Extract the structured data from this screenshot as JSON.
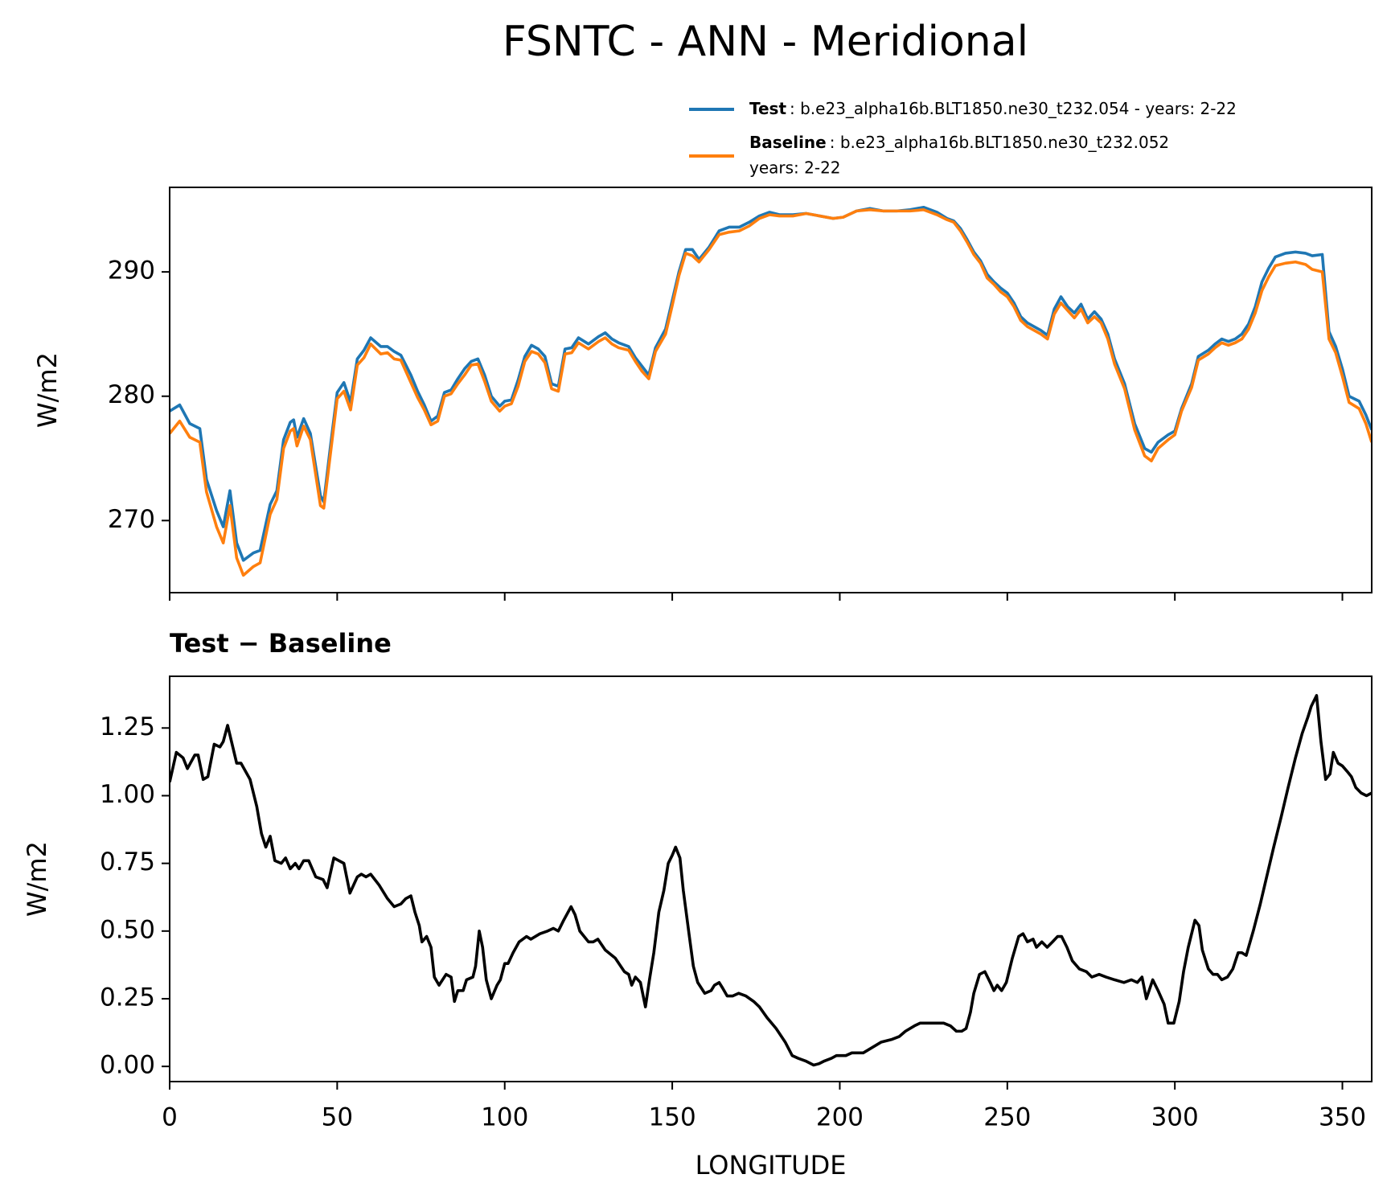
{
  "chart_data": [
    {
      "type": "line",
      "title": "FSNTC - ANN - Meridional",
      "ylabel": "W/m2",
      "x": [
        0,
        3,
        6,
        9,
        11,
        14,
        16,
        18,
        20,
        22,
        25,
        27,
        30,
        32,
        34,
        36,
        37,
        38,
        40,
        42,
        45,
        46,
        48,
        50,
        52,
        54,
        56,
        58,
        60,
        63,
        65,
        67,
        69,
        72,
        74,
        76,
        78,
        80,
        82,
        84,
        86,
        88,
        90,
        92,
        94,
        96,
        98.5,
        100,
        102,
        104,
        106,
        108,
        110,
        112,
        114,
        116,
        118,
        120,
        122,
        125,
        128,
        130,
        132,
        134,
        137,
        139,
        141,
        143,
        145,
        148,
        150,
        152,
        154,
        156,
        158,
        161,
        164,
        167,
        170,
        173,
        176,
        179,
        182,
        186,
        190,
        194,
        198,
        201,
        205,
        209,
        213,
        217,
        221,
        225,
        229,
        232,
        234,
        236,
        238,
        240,
        242,
        244,
        246,
        248,
        250,
        252,
        254,
        256,
        258,
        260,
        262,
        264,
        266,
        268,
        270,
        272,
        274,
        276,
        278,
        280,
        282,
        285,
        288,
        291,
        293,
        295,
        298,
        300,
        302,
        305,
        307,
        310,
        312,
        314,
        316,
        318,
        320,
        322,
        324,
        326,
        328,
        330,
        333,
        336,
        339,
        341,
        344,
        346,
        348,
        350,
        352,
        355,
        357,
        358.75
      ],
      "series": [
        {
          "name": "Test",
          "description": [
            ": b.e23_alpha16b.BLT1850.ne30_t232.054 - years: 2-22"
          ],
          "color": "#1f77b4",
          "values": [
            278.8,
            279.3,
            277.8,
            277.4,
            273.3,
            270.8,
            269.5,
            272.4,
            268.2,
            266.8,
            267.4,
            267.6,
            271.3,
            272.4,
            276.5,
            277.9,
            278.1,
            276.7,
            278.2,
            277.0,
            272.0,
            271.5,
            276.0,
            280.3,
            281.1,
            279.5,
            283.0,
            283.7,
            284.7,
            284.0,
            284.0,
            283.6,
            283.3,
            281.7,
            280.4,
            279.3,
            278.0,
            278.4,
            280.3,
            280.5,
            281.4,
            282.2,
            282.8,
            283.0,
            281.7,
            280.0,
            279.2,
            279.6,
            279.7,
            281.3,
            283.2,
            284.1,
            283.8,
            283.2,
            281.0,
            280.8,
            283.8,
            283.9,
            284.7,
            284.2,
            284.8,
            285.1,
            284.6,
            284.3,
            284.0,
            283.1,
            282.4,
            281.7,
            283.9,
            285.4,
            287.7,
            290.0,
            291.8,
            291.8,
            291.0,
            292.0,
            293.3,
            293.6,
            293.6,
            294.0,
            294.5,
            294.8,
            294.6,
            294.6,
            294.7,
            294.5,
            294.3,
            294.4,
            294.9,
            295.1,
            294.9,
            294.9,
            295.0,
            295.2,
            294.8,
            294.3,
            294.1,
            293.5,
            292.6,
            291.6,
            290.9,
            289.8,
            289.2,
            288.7,
            288.3,
            287.5,
            286.4,
            285.9,
            285.6,
            285.3,
            284.9,
            287.0,
            288.0,
            287.2,
            286.7,
            287.4,
            286.2,
            286.8,
            286.2,
            285.0,
            283.0,
            281.0,
            277.8,
            275.8,
            275.5,
            276.3,
            276.9,
            277.2,
            279.0,
            281.0,
            283.2,
            283.7,
            284.2,
            284.6,
            284.4,
            284.6,
            285.0,
            285.8,
            287.2,
            289.2,
            290.3,
            291.2,
            291.5,
            291.6,
            291.5,
            291.3,
            291.4,
            285.2,
            284.0,
            282.2,
            280.0,
            279.6,
            278.5,
            277.3
          ]
        },
        {
          "name": "Baseline",
          "description": [
            ": b.e23_alpha16b.BLT1850.ne30_t232.052",
            "years: 2-22"
          ],
          "color": "#ff7f0e",
          "values": [
            277.0,
            278.0,
            276.7,
            276.3,
            272.3,
            269.5,
            268.2,
            271.2,
            267.0,
            265.6,
            266.3,
            266.6,
            270.5,
            271.7,
            275.8,
            277.2,
            277.4,
            276.0,
            277.6,
            276.5,
            271.2,
            271.0,
            275.4,
            279.8,
            280.4,
            278.9,
            282.5,
            283.1,
            284.2,
            283.4,
            283.5,
            283.0,
            282.9,
            281.1,
            279.9,
            278.9,
            277.7,
            278.0,
            280.0,
            280.2,
            281.0,
            281.7,
            282.5,
            282.6,
            281.2,
            279.6,
            278.8,
            279.2,
            279.4,
            280.8,
            282.8,
            283.6,
            283.4,
            282.7,
            280.6,
            280.4,
            283.4,
            283.5,
            284.3,
            283.8,
            284.4,
            284.7,
            284.2,
            283.9,
            283.7,
            282.8,
            282.0,
            281.4,
            283.6,
            285.0,
            287.3,
            289.7,
            291.5,
            291.3,
            290.8,
            291.8,
            293.0,
            293.2,
            293.3,
            293.7,
            294.3,
            294.6,
            294.5,
            294.5,
            294.7,
            294.5,
            294.3,
            294.4,
            294.9,
            295.0,
            294.9,
            294.9,
            294.9,
            295.0,
            294.6,
            294.2,
            294.0,
            293.3,
            292.4,
            291.4,
            290.7,
            289.5,
            289.0,
            288.4,
            288.0,
            287.2,
            286.1,
            285.6,
            285.3,
            285.0,
            284.6,
            286.6,
            287.5,
            286.9,
            286.3,
            287.0,
            285.9,
            286.4,
            285.9,
            284.6,
            282.6,
            280.6,
            277.3,
            275.2,
            274.8,
            275.8,
            276.5,
            276.9,
            278.8,
            280.7,
            282.9,
            283.4,
            283.9,
            284.3,
            284.1,
            284.3,
            284.6,
            285.4,
            286.7,
            288.5,
            289.6,
            290.5,
            290.7,
            290.8,
            290.6,
            290.2,
            290.0,
            284.6,
            283.5,
            281.6,
            279.5,
            279.0,
            277.8,
            276.3
          ]
        }
      ],
      "xlim": [
        0,
        358.75
      ],
      "xticks": [
        0,
        50,
        100,
        150,
        200,
        250,
        300,
        350
      ],
      "xtick_labels": false,
      "ylim": [
        264.2,
        296.8
      ],
      "yticks": [
        270,
        280,
        290
      ],
      "legend": "upper right"
    },
    {
      "type": "line",
      "title": "Test − Baseline",
      "ylabel": "W/m2",
      "xlabel": "LONGITUDE",
      "x": [
        0,
        2,
        4,
        5.3,
        7.5,
        8.5,
        10,
        11.4,
        13.3,
        15,
        16,
        17.3,
        20,
        21.3,
        24,
        26,
        27.4,
        28.7,
        30,
        31.4,
        33.3,
        34.6,
        36,
        37.5,
        38.6,
        40,
        41.5,
        43.6,
        45.8,
        47,
        49,
        52,
        53.8,
        56,
        57.2,
        58.6,
        60,
        62.5,
        65,
        67,
        69,
        70.5,
        72,
        73.2,
        74.5,
        75.3,
        76.7,
        78,
        79,
        80.4,
        82.5,
        84,
        85,
        86,
        87.6,
        88.6,
        90.5,
        91.3,
        92.4,
        93.4,
        94.5,
        96,
        97.7,
        98.7,
        100,
        101,
        102.5,
        104.3,
        106.5,
        107.8,
        110.5,
        112.8,
        114.5,
        116,
        117.6,
        119.8,
        121,
        122.4,
        125,
        126.4,
        127.8,
        130,
        133,
        135.7,
        137,
        137.9,
        139,
        140.5,
        142,
        143.2,
        144.5,
        146,
        147.5,
        148.8,
        150,
        151,
        152.3,
        153.3,
        155,
        156.3,
        157.6,
        159.7,
        161.6,
        162.6,
        164,
        165,
        166.4,
        168,
        169.8,
        172,
        174.3,
        176,
        178.3,
        181,
        183.7,
        185.8,
        187.6,
        189.8,
        192.2,
        193.8,
        195.4,
        197.5,
        199,
        201.8,
        203.6,
        205,
        207,
        209.7,
        212.4,
        215.6,
        217.7,
        219.6,
        222.3,
        224,
        227.6,
        231,
        233,
        234.8,
        236.4,
        237.7,
        239,
        240,
        241.7,
        243.3,
        244.9,
        246,
        247,
        248.3,
        249.7,
        251.5,
        253.4,
        254.7,
        256,
        257.7,
        258.7,
        260.3,
        261.9,
        263.5,
        265,
        266.2,
        267.8,
        269.4,
        271.5,
        273.6,
        275.2,
        277.4,
        279.5,
        282,
        284.8,
        287,
        288.8,
        290.2,
        291.5,
        293.4,
        295,
        296.8,
        298,
        299.7,
        301.3,
        302.6,
        304,
        306,
        307.2,
        308.2,
        310,
        311.4,
        312.7,
        314,
        315.7,
        317.3,
        318.9,
        320,
        321.3,
        323.4,
        325.5,
        327.4,
        329.5,
        331.7,
        333.8,
        336,
        338,
        339.7,
        340.7,
        342.3,
        343.6,
        345,
        346.3,
        347.3,
        348.7,
        350,
        351.4,
        352.7,
        354,
        355.6,
        357.2,
        358.75
      ],
      "series": [
        {
          "color": "#000000",
          "values": [
            1.05,
            1.16,
            1.14,
            1.1,
            1.15,
            1.15,
            1.06,
            1.07,
            1.19,
            1.18,
            1.2,
            1.26,
            1.12,
            1.12,
            1.06,
            0.96,
            0.86,
            0.81,
            0.85,
            0.76,
            0.75,
            0.77,
            0.73,
            0.75,
            0.73,
            0.76,
            0.76,
            0.7,
            0.69,
            0.66,
            0.77,
            0.75,
            0.64,
            0.7,
            0.71,
            0.7,
            0.71,
            0.67,
            0.62,
            0.59,
            0.6,
            0.62,
            0.63,
            0.57,
            0.52,
            0.46,
            0.48,
            0.44,
            0.33,
            0.3,
            0.34,
            0.33,
            0.24,
            0.28,
            0.28,
            0.32,
            0.33,
            0.37,
            0.5,
            0.44,
            0.32,
            0.25,
            0.3,
            0.32,
            0.38,
            0.38,
            0.42,
            0.46,
            0.48,
            0.47,
            0.49,
            0.5,
            0.51,
            0.5,
            0.54,
            0.59,
            0.56,
            0.5,
            0.46,
            0.46,
            0.47,
            0.43,
            0.4,
            0.35,
            0.34,
            0.3,
            0.33,
            0.31,
            0.22,
            0.32,
            0.42,
            0.57,
            0.65,
            0.75,
            0.78,
            0.81,
            0.77,
            0.65,
            0.49,
            0.37,
            0.31,
            0.27,
            0.28,
            0.3,
            0.31,
            0.29,
            0.26,
            0.26,
            0.27,
            0.26,
            0.24,
            0.22,
            0.18,
            0.14,
            0.09,
            0.04,
            0.03,
            0.02,
            0.005,
            0.01,
            0.02,
            0.03,
            0.04,
            0.04,
            0.05,
            0.05,
            0.05,
            0.07,
            0.09,
            0.1,
            0.11,
            0.13,
            0.15,
            0.16,
            0.16,
            0.16,
            0.15,
            0.13,
            0.13,
            0.14,
            0.2,
            0.27,
            0.34,
            0.35,
            0.31,
            0.28,
            0.3,
            0.28,
            0.31,
            0.4,
            0.48,
            0.49,
            0.46,
            0.47,
            0.44,
            0.46,
            0.44,
            0.46,
            0.48,
            0.48,
            0.44,
            0.39,
            0.36,
            0.35,
            0.33,
            0.34,
            0.33,
            0.32,
            0.31,
            0.32,
            0.31,
            0.33,
            0.25,
            0.32,
            0.28,
            0.23,
            0.16,
            0.16,
            0.24,
            0.35,
            0.44,
            0.54,
            0.52,
            0.43,
            0.36,
            0.34,
            0.34,
            0.32,
            0.33,
            0.36,
            0.42,
            0.42,
            0.41,
            0.5,
            0.6,
            0.7,
            0.81,
            0.92,
            1.03,
            1.14,
            1.23,
            1.29,
            1.33,
            1.37,
            1.2,
            1.06,
            1.08,
            1.16,
            1.12,
            1.11,
            1.09,
            1.07,
            1.03,
            1.01,
            1.0,
            1.01
          ]
        }
      ],
      "xlim": [
        0,
        358.75
      ],
      "xticks": [
        0,
        50,
        100,
        150,
        200,
        250,
        300,
        350
      ],
      "xtick_labels": true,
      "ylim": [
        -0.056,
        1.441
      ],
      "yticks": [
        {
          "value": 0,
          "label": "0.00"
        },
        0.25,
        {
          "value": 0.5,
          "label": "0.50"
        },
        0.75,
        {
          "value": 1,
          "label": "1.00"
        },
        1.25
      ]
    }
  ]
}
